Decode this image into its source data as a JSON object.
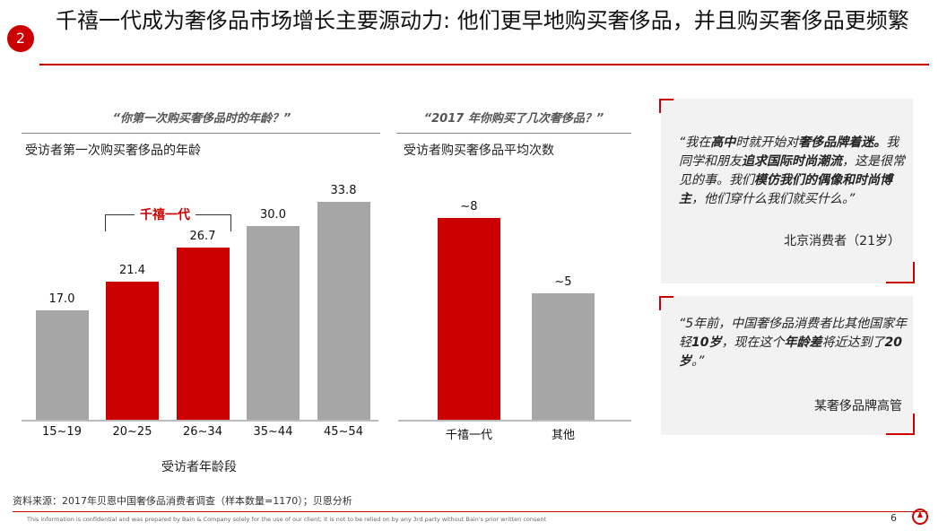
{
  "header": {
    "badge": "2",
    "title": "千禧一代成为奢侈品市场增长主要源动力: 他们更早地购买奢侈品，并且购买奢侈品更频繁"
  },
  "colors": {
    "accent": "#cc0000",
    "gray_bar": "#a6a6a6",
    "quote_bg": "#f2f2f2"
  },
  "chart_data": [
    {
      "type": "bar",
      "question": "“你第一次购买奢侈品时的年龄？”",
      "subtitle": "受访者第一次购买奢侈品的年龄",
      "xlabel": "受访者年龄段",
      "categories": [
        "15~19",
        "20~25",
        "26~34",
        "35~44",
        "45~54"
      ],
      "values": [
        17.0,
        21.4,
        26.7,
        30.0,
        33.8
      ],
      "value_labels": [
        "17.0",
        "21.4",
        "26.7",
        "30.0",
        "33.8"
      ],
      "highlight": [
        false,
        true,
        true,
        false,
        false
      ],
      "bracket_label": "千禧一代",
      "ylim": [
        0,
        38
      ]
    },
    {
      "type": "bar",
      "question": "“2017 年你购买了几次奢侈品？”",
      "subtitle": "受访者购买奢侈品平均次数",
      "categories": [
        "千禧一代",
        "其他"
      ],
      "values": [
        8,
        5
      ],
      "value_labels": [
        "~8",
        "~5"
      ],
      "highlight": [
        true,
        false
      ],
      "ylim": [
        0,
        9.2
      ]
    }
  ],
  "quotes": [
    {
      "segments": [
        {
          "t": "“我在",
          "b": false
        },
        {
          "t": "高中",
          "b": true
        },
        {
          "t": "时就开始对",
          "b": false
        },
        {
          "t": "奢侈品牌着迷。",
          "b": true
        },
        {
          "t": "我同学和朋友",
          "b": false
        },
        {
          "t": "追求国际时尚潮流",
          "b": true
        },
        {
          "t": "，这是很常见的事。我们",
          "b": false
        },
        {
          "t": "模仿我们的偶像和时尚博主",
          "b": true
        },
        {
          "t": "，他们穿什么我们就买什么。”",
          "b": false
        }
      ],
      "attribution": "北京消费者（21岁）"
    },
    {
      "segments": [
        {
          "t": "“5年前，中国奢侈品消费者比其他国家年轻",
          "b": false
        },
        {
          "t": "10岁",
          "b": true
        },
        {
          "t": "，现在这个",
          "b": false
        },
        {
          "t": "年龄差",
          "b": true
        },
        {
          "t": "将近达到了",
          "b": false
        },
        {
          "t": "20岁",
          "b": true
        },
        {
          "t": "。”",
          "b": false
        }
      ],
      "attribution": "某奢侈品牌高管"
    }
  ],
  "footer": {
    "source": "资料来源：2017年贝恩中国奢侈品消费者调查（样本数量=1170）；贝恩分析",
    "confidential": "This information is confidential and was prepared by Bain & Company solely for the use of our client; it is not to be relied on by any 3rd party without Bain's prior written consent",
    "page": "6"
  }
}
